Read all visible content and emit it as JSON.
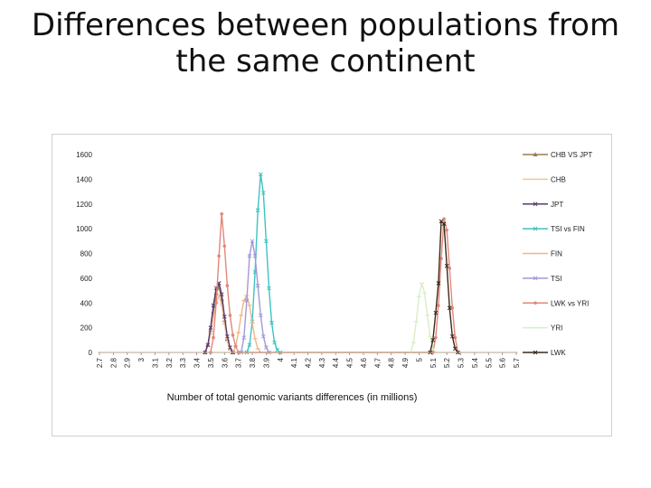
{
  "slide": {
    "title_line1": "Differences between populations from",
    "title_line2": "the same continent"
  },
  "chart_data": {
    "type": "line",
    "title": "",
    "xlabel": "Number of total genomic variants differences (in millions)",
    "ylabel": "",
    "ylim": [
      0,
      1600
    ],
    "yticks": [
      0,
      200,
      400,
      600,
      800,
      1000,
      1200,
      1400,
      1600
    ],
    "xlim": [
      2.7,
      5.7
    ],
    "xticks": [
      "2.7",
      "2.8",
      "2.9",
      "3",
      "3.1",
      "3.2",
      "3.3",
      "3.4",
      "3.5",
      "3.6",
      "3.7",
      "3.8",
      "3.9",
      "4",
      "4.1",
      "4.2",
      "4.3",
      "4.4",
      "4.5",
      "4.6",
      "4.7",
      "4.8",
      "4.9",
      "5",
      "5.1",
      "5.2",
      "5.3",
      "5.4",
      "5.5",
      "5.6",
      "5.7"
    ],
    "grid": false,
    "legend_position": "right",
    "series": [
      {
        "name": "CHB VS JPT",
        "color": "#9c7b53",
        "marker": "triangle",
        "points": [
          [
            3.46,
            0
          ],
          [
            3.48,
            60
          ],
          [
            3.5,
            180
          ],
          [
            3.52,
            330
          ],
          [
            3.54,
            480
          ],
          [
            3.56,
            530
          ],
          [
            3.58,
            430
          ],
          [
            3.6,
            260
          ],
          [
            3.62,
            110
          ],
          [
            3.64,
            30
          ],
          [
            3.66,
            0
          ]
        ]
      },
      {
        "name": "CHB",
        "color": "#f3c49b",
        "marker": "dash",
        "points": [
          [
            3.46,
            0
          ],
          [
            3.48,
            50
          ],
          [
            3.5,
            150
          ],
          [
            3.52,
            280
          ],
          [
            3.54,
            400
          ],
          [
            3.56,
            460
          ],
          [
            3.58,
            380
          ],
          [
            3.6,
            230
          ],
          [
            3.62,
            90
          ],
          [
            3.64,
            20
          ],
          [
            3.66,
            0
          ]
        ]
      },
      {
        "name": "JPT",
        "color": "#5a3a6e",
        "marker": "x",
        "points": [
          [
            3.46,
            0
          ],
          [
            3.48,
            60
          ],
          [
            3.5,
            200
          ],
          [
            3.52,
            380
          ],
          [
            3.54,
            520
          ],
          [
            3.56,
            560
          ],
          [
            3.58,
            470
          ],
          [
            3.6,
            290
          ],
          [
            3.62,
            130
          ],
          [
            3.64,
            40
          ],
          [
            3.66,
            0
          ]
        ]
      },
      {
        "name": "TSI vs FIN",
        "color": "#3ec3c3",
        "marker": "x",
        "points": [
          [
            3.76,
            0
          ],
          [
            3.78,
            60
          ],
          [
            3.8,
            250
          ],
          [
            3.82,
            650
          ],
          [
            3.84,
            1150
          ],
          [
            3.86,
            1440
          ],
          [
            3.88,
            1290
          ],
          [
            3.9,
            900
          ],
          [
            3.92,
            520
          ],
          [
            3.94,
            240
          ],
          [
            3.96,
            80
          ],
          [
            3.98,
            20
          ],
          [
            4.0,
            0
          ]
        ]
      },
      {
        "name": "FIN",
        "color": "#f0b58a",
        "marker": "dash",
        "points": [
          [
            3.66,
            0
          ],
          [
            3.68,
            50
          ],
          [
            3.7,
            160
          ],
          [
            3.72,
            300
          ],
          [
            3.74,
            420
          ],
          [
            3.76,
            460
          ],
          [
            3.78,
            380
          ],
          [
            3.8,
            240
          ],
          [
            3.82,
            110
          ],
          [
            3.84,
            30
          ],
          [
            3.86,
            0
          ]
        ]
      },
      {
        "name": "TSI",
        "color": "#a09ad8",
        "marker": "x",
        "points": [
          [
            3.72,
            0
          ],
          [
            3.74,
            120
          ],
          [
            3.76,
            420
          ],
          [
            3.78,
            780
          ],
          [
            3.8,
            900
          ],
          [
            3.82,
            780
          ],
          [
            3.84,
            540
          ],
          [
            3.86,
            300
          ],
          [
            3.88,
            130
          ],
          [
            3.9,
            40
          ],
          [
            3.92,
            0
          ]
        ]
      },
      {
        "name": "LWK vs YRI",
        "color": "#e2877a",
        "marker": "circle",
        "points": [
          [
            3.5,
            0
          ],
          [
            3.52,
            120
          ],
          [
            3.54,
            400
          ],
          [
            3.56,
            780
          ],
          [
            3.58,
            1120
          ],
          [
            3.6,
            860
          ],
          [
            3.62,
            540
          ],
          [
            3.64,
            300
          ],
          [
            3.66,
            140
          ],
          [
            3.68,
            50
          ],
          [
            3.7,
            0
          ],
          [
            5.1,
            0
          ],
          [
            5.12,
            120
          ],
          [
            5.14,
            380
          ],
          [
            5.16,
            760
          ],
          [
            5.18,
            1080
          ],
          [
            5.2,
            990
          ],
          [
            5.22,
            680
          ],
          [
            5.24,
            360
          ],
          [
            5.26,
            120
          ],
          [
            5.28,
            0
          ]
        ]
      },
      {
        "name": "YRI",
        "color": "#d8eec4",
        "marker": "dash",
        "points": [
          [
            4.94,
            0
          ],
          [
            4.96,
            80
          ],
          [
            4.98,
            250
          ],
          [
            5.0,
            450
          ],
          [
            5.02,
            560
          ],
          [
            5.04,
            480
          ],
          [
            5.06,
            300
          ],
          [
            5.08,
            130
          ],
          [
            5.1,
            30
          ],
          [
            5.12,
            0
          ]
        ]
      },
      {
        "name": "LWK",
        "color": "#3a2a1a",
        "marker": "x",
        "points": [
          [
            5.08,
            0
          ],
          [
            5.1,
            100
          ],
          [
            5.12,
            320
          ],
          [
            5.14,
            560
          ],
          [
            5.16,
            1060
          ],
          [
            5.18,
            1040
          ],
          [
            5.2,
            700
          ],
          [
            5.22,
            360
          ],
          [
            5.24,
            130
          ],
          [
            5.26,
            30
          ],
          [
            5.28,
            0
          ]
        ]
      }
    ]
  }
}
